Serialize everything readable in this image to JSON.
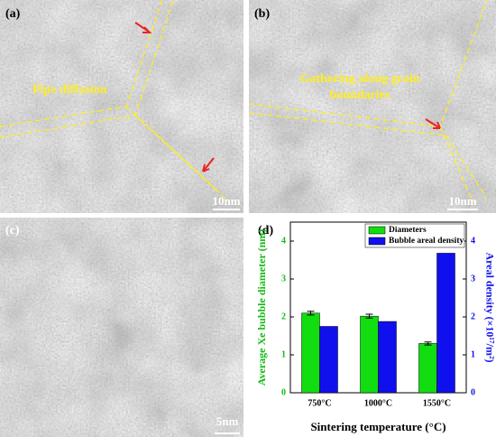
{
  "panels": [
    {
      "label": "(a)",
      "annotation": [
        "Pipe diffusion"
      ],
      "scale_bar": "10nm"
    },
    {
      "label": "(b)",
      "annotation": [
        "Gathering along grain",
        "boundaries"
      ],
      "scale_bar": "10nm"
    },
    {
      "label": "(c)",
      "scale_bar": "5nm"
    },
    {
      "label": "(d)"
    }
  ],
  "chart_data": {
    "type": "bar",
    "xlabel": "Sintering temperature (°C)",
    "ylabel": "Average Xe bubble diameter (nm)",
    "y2label": "Areal density (×10¹⁷/m²)",
    "categories": [
      "750°C",
      "1000°C",
      "1550°C"
    ],
    "series": [
      {
        "name": "Diameters",
        "color": "#11dd11",
        "values": [
          2.1,
          2.02,
          1.3
        ],
        "errors": [
          0.05,
          0.05,
          0.04
        ]
      },
      {
        "name": "Bubble areal density",
        "color": "#1010ee",
        "values": [
          1.75,
          1.88,
          3.68
        ],
        "axis": "y2"
      }
    ],
    "ylim": [
      0,
      4.5
    ],
    "yticks": [
      0,
      1,
      2,
      3,
      4
    ],
    "y2lim": [
      0,
      4.5
    ],
    "y2ticks": [
      0,
      1,
      2,
      3,
      4
    ],
    "ylabel_color": "#11bb11",
    "y2label_color": "#1010ee",
    "legend": "upper right"
  }
}
